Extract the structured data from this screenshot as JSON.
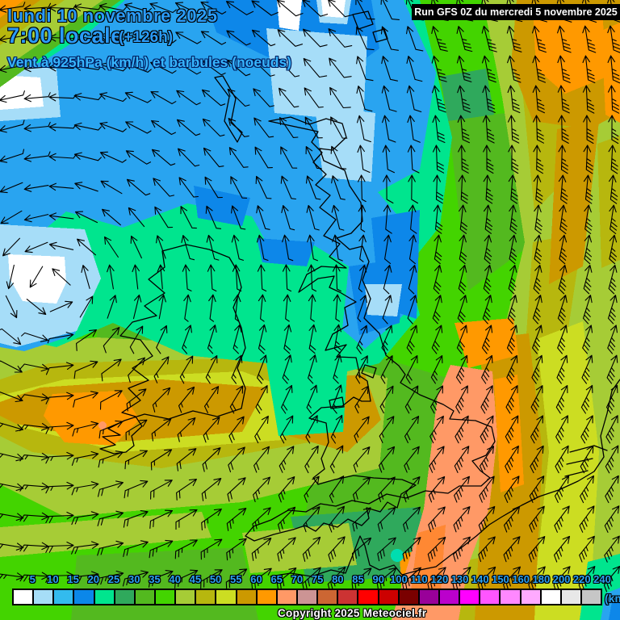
{
  "header": {
    "date_line": "lundi 10 novembre 2025",
    "time_line": "7:00 locale",
    "forecast_offset": "(+126h)",
    "subtitle": "Vent à 925hPa (km/h) et barbules (noeuds)"
  },
  "run_info": "Run GFS 0Z du mercredi 5 novembre 2025",
  "copyright": "Copyright 2025 Meteociel.fr",
  "scale": {
    "unit_label": "(km/h)",
    "ticks": [
      5,
      10,
      15,
      20,
      25,
      30,
      35,
      40,
      45,
      50,
      55,
      60,
      65,
      70,
      75,
      80,
      85,
      90,
      100,
      110,
      120,
      130,
      140,
      150,
      160,
      180,
      200,
      220,
      240
    ],
    "colors": [
      "#ffffff",
      "#a6ddf7",
      "#33bbee",
      "#0b87e9",
      "#00e58e",
      "#2fa95c",
      "#53b91f",
      "#43d400",
      "#a6cc36",
      "#b7b70e",
      "#ccdd22",
      "#cc9900",
      "#ff9900",
      "#ff9966",
      "#cc9494",
      "#cc6633",
      "#cc3333",
      "#ff0000",
      "#cc0000",
      "#7a0000",
      "#990099",
      "#bb00cc",
      "#ff00ff",
      "#ff55ff",
      "#ff88ff",
      "#ffaaff",
      "#ffffff",
      "#e8e8e8",
      "#c6c6c6"
    ]
  },
  "colors": {
    "label_blue": "#2ba2f2",
    "header_blue": "#2b9bf8",
    "subtitle_cyan": "#37b5fd"
  }
}
